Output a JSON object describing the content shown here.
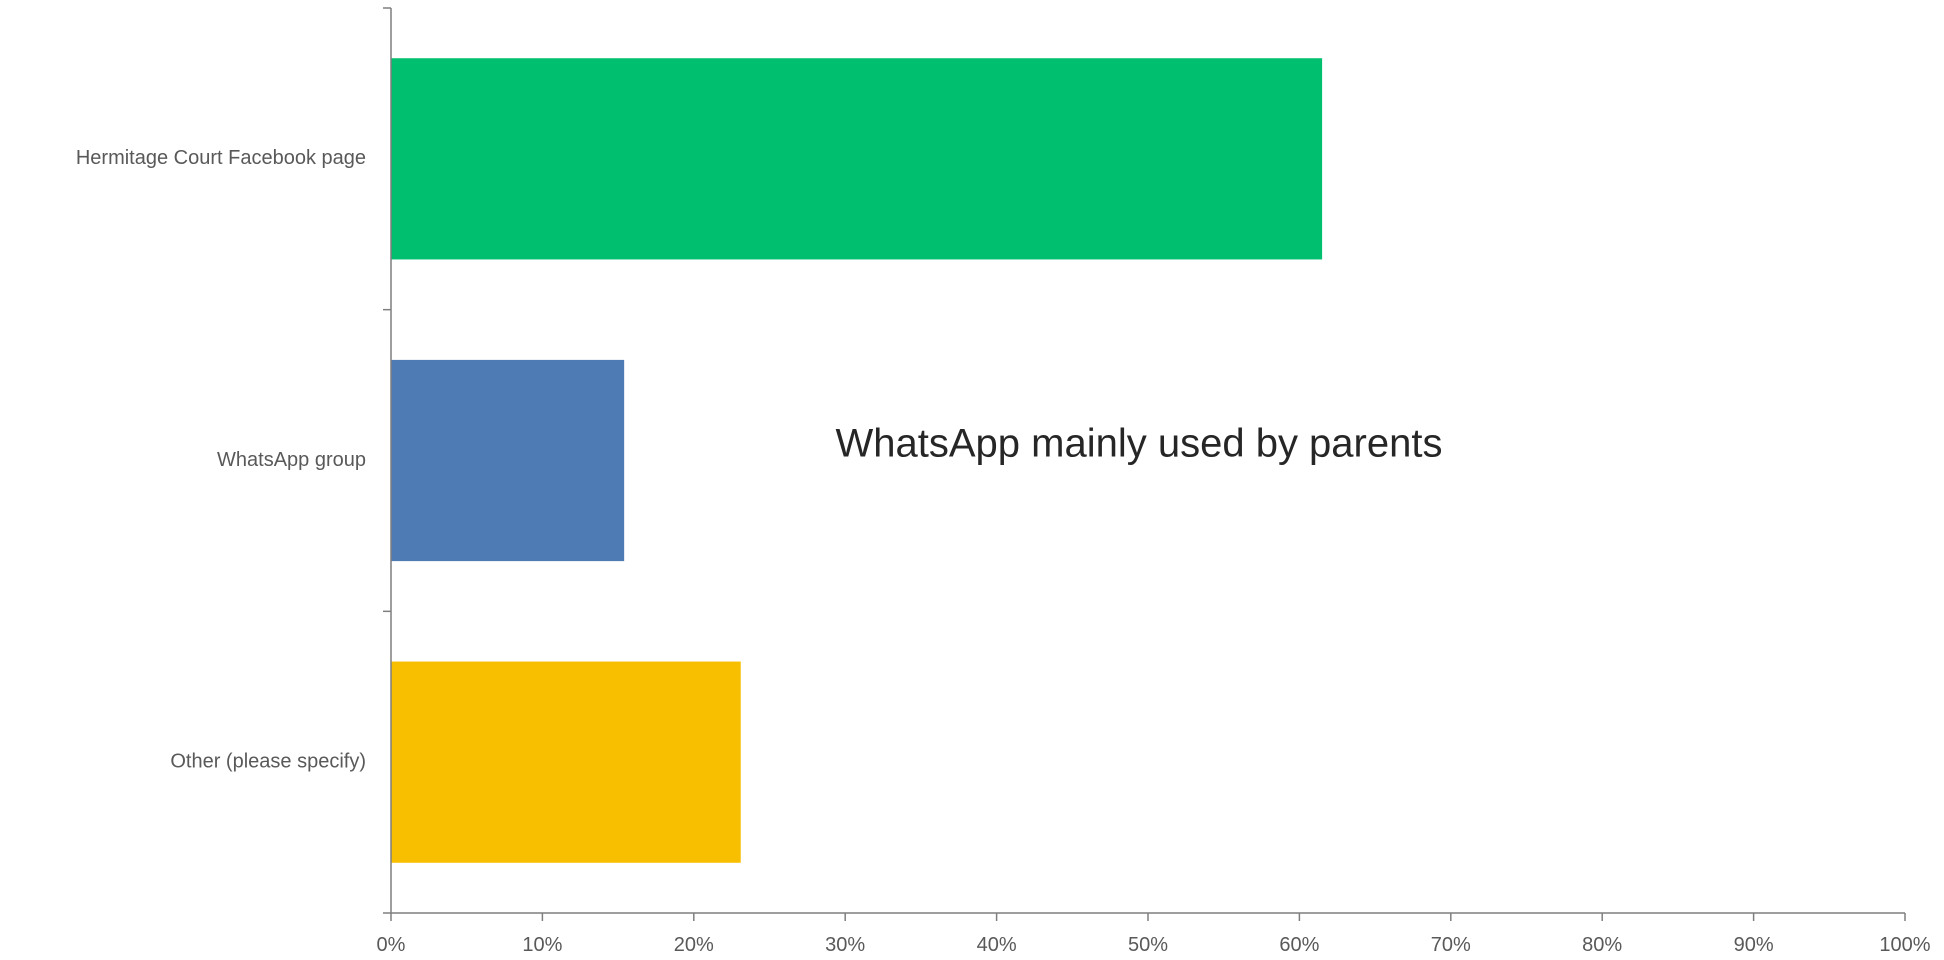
{
  "chart_data": {
    "type": "bar",
    "orientation": "horizontal",
    "categories": [
      "Hermitage Court Facebook page",
      "WhatsApp group",
      "Other (please specify)"
    ],
    "values": [
      61.5,
      15.4,
      23.1
    ],
    "value_unit": "%",
    "colors": [
      "#00BF6F",
      "#4F7BB4",
      "#F7BF00"
    ],
    "xlim": [
      0,
      100
    ],
    "xticks": [
      0,
      10,
      20,
      30,
      40,
      50,
      60,
      70,
      80,
      90,
      100
    ],
    "xtick_labels": [
      "0%",
      "10%",
      "20%",
      "30%",
      "40%",
      "50%",
      "60%",
      "70%",
      "80%",
      "90%",
      "100%"
    ],
    "title": "",
    "xlabel": "",
    "ylabel": "",
    "grid": false,
    "legend": "none",
    "annotation": "WhatsApp mainly used by parents"
  }
}
